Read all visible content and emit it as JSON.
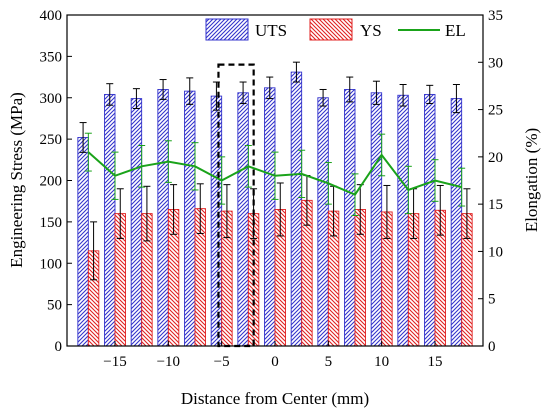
{
  "chart_data": {
    "type": "bar",
    "xlabel": "Distance from Center (mm)",
    "ylabel": "Engineering Stress (MPa)",
    "y2label": "Elongation (%)",
    "xlim": [
      -19.5,
      19.5
    ],
    "ylim": [
      0,
      400
    ],
    "y2lim": [
      0,
      35
    ],
    "xticks": [
      -15,
      -10,
      -5,
      0,
      5,
      10,
      15
    ],
    "yticks": [
      0,
      50,
      100,
      150,
      200,
      250,
      300,
      350,
      400
    ],
    "y2ticks": [
      0,
      5,
      10,
      15,
      20,
      25,
      30,
      35
    ],
    "legend_position": "top-right",
    "highlight_box": {
      "x_range": [
        -5.3,
        -2.0
      ],
      "y_range": [
        0,
        340
      ],
      "style": "dashed"
    },
    "x": [
      -17.5,
      -15,
      -12.5,
      -10,
      -7.5,
      -5,
      -2.5,
      0,
      2.5,
      5,
      7.5,
      10,
      12.5,
      15,
      17.5
    ],
    "series": [
      {
        "name": "UTS",
        "kind": "bar",
        "axis": "left",
        "color": "#3333cc",
        "values": [
          252,
          304,
          299,
          310,
          308,
          302,
          306,
          312,
          331,
          300,
          310,
          306,
          303,
          304,
          299
        ],
        "errors": [
          18,
          13,
          12,
          12,
          16,
          17,
          13,
          13,
          12,
          10,
          15,
          14,
          13,
          11,
          17
        ]
      },
      {
        "name": "YS",
        "kind": "bar",
        "axis": "left",
        "color": "#e02020",
        "values": [
          115,
          160,
          160,
          165,
          166,
          163,
          160,
          165,
          176,
          163,
          165,
          162,
          160,
          164,
          160
        ],
        "errors": [
          35,
          30,
          33,
          30,
          30,
          32,
          30,
          32,
          30,
          30,
          30,
          32,
          30,
          30,
          30
        ]
      },
      {
        "name": "EL",
        "kind": "line",
        "axis": "right",
        "color": "#1aa31a",
        "values": [
          20.5,
          18,
          19,
          19.5,
          19,
          17.5,
          19,
          18,
          18.2,
          17.2,
          16,
          20.2,
          16.5,
          17.5,
          16.8
        ],
        "errors": [
          2.0,
          2.5,
          2.2,
          2.2,
          2.5,
          2.5,
          2.2,
          2.5,
          2.5,
          2.2,
          2.2,
          2.2,
          2.5,
          2.2,
          2.0
        ]
      }
    ]
  }
}
